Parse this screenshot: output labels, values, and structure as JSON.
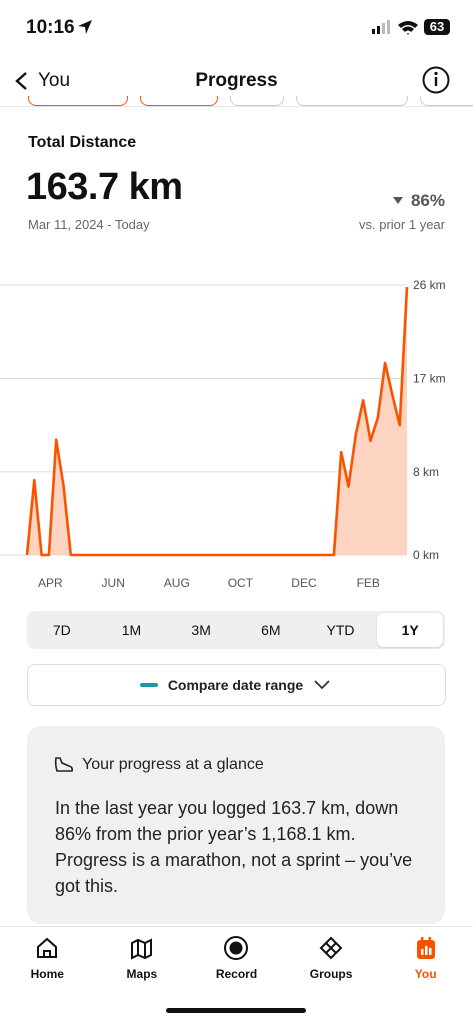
{
  "status_bar": {
    "time": "10:16",
    "battery": "63"
  },
  "nav": {
    "back": "You",
    "title": "Progress"
  },
  "summary": {
    "label": "Total Distance",
    "value": "163.7 km",
    "change": "86%",
    "date_range": "Mar 11, 2024 - Today",
    "comparison": "vs. prior 1 year"
  },
  "chart_data": {
    "type": "line",
    "x": [
      0,
      1,
      2,
      3,
      4,
      5,
      6,
      7,
      8,
      9,
      10,
      11,
      12,
      13,
      14,
      15,
      16,
      17,
      18,
      19,
      20,
      21,
      22,
      23,
      24,
      25,
      26,
      27,
      28,
      29,
      30,
      31,
      32,
      33,
      34,
      35,
      36,
      37,
      38,
      39,
      40,
      41,
      42,
      43,
      44,
      45,
      46,
      47,
      48,
      49,
      50,
      51,
      52
    ],
    "values": [
      0,
      7.2,
      0,
      0,
      11.1,
      6.7,
      0,
      0,
      0,
      0,
      0,
      0,
      0,
      0,
      0,
      0,
      0,
      0,
      0,
      0,
      0,
      0,
      0,
      0,
      0,
      0,
      0,
      0,
      0,
      0,
      0,
      0,
      0,
      0,
      0,
      0,
      0,
      0,
      0,
      0,
      0,
      0,
      0,
      9.9,
      6.6,
      11.6,
      14.9,
      11.0,
      13.2,
      18.5,
      15.4,
      12.5,
      25.8
    ],
    "color": "#fc5200",
    "fill_color": "#fdd3c1",
    "xlim": [
      0,
      52
    ],
    "xticks": [
      {
        "value": 3.2,
        "label": "APR"
      },
      {
        "value": 11.8,
        "label": "JUN"
      },
      {
        "value": 20.5,
        "label": "AUG"
      },
      {
        "value": 29.2,
        "label": "OCT"
      },
      {
        "value": 37.9,
        "label": "DEC"
      },
      {
        "value": 46.7,
        "label": "FEB"
      }
    ],
    "ylim": [
      0,
      26
    ],
    "yticks": [
      {
        "value": 0,
        "label": "0 km"
      },
      {
        "value": 8,
        "label": "8 km"
      },
      {
        "value": 17,
        "label": "17 km"
      },
      {
        "value": 26,
        "label": "26 km"
      }
    ],
    "grid": true
  },
  "range_selector": {
    "options": [
      "7D",
      "1M",
      "3M",
      "6M",
      "YTD",
      "1Y"
    ],
    "selected": 5
  },
  "compare": {
    "label": "Compare date range"
  },
  "glance": {
    "title": "Your progress at a glance",
    "body": "In the last year you logged 163.7 km, down 86% from the prior year’s 1,168.1 km. Progress is a marathon, not a sprint – you’ve got this."
  },
  "tabs": {
    "items": [
      "Home",
      "Maps",
      "Record",
      "Groups",
      "You"
    ],
    "active": 4
  }
}
